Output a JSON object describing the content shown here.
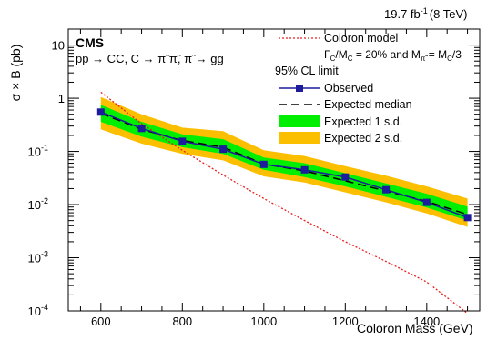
{
  "chart_data": {
    "type": "line",
    "lumi_label": "19.7 fb",
    "lumi_exponent": "-1",
    "energy_label": "(8 TeV)",
    "experiment": "CMS",
    "process": "pp → CC, C → π̃ π̃, π̃ → gg",
    "xlabel": "Coloron Mass (GeV)",
    "ylabel": "σ × B (pb)",
    "xlim": [
      520,
      1530
    ],
    "ylim": [
      0.0001,
      20
    ],
    "yscale": "log",
    "x_ticks": [
      600,
      800,
      1000,
      1200,
      1400
    ],
    "y_ticks": [
      {
        "value": 0.0001,
        "base": "10",
        "exp": "-4"
      },
      {
        "value": 0.001,
        "base": "10",
        "exp": "-3"
      },
      {
        "value": 0.01,
        "base": "10",
        "exp": "-2"
      },
      {
        "value": 0.1,
        "base": "10",
        "exp": "-1"
      },
      {
        "value": 1,
        "base": "1",
        "exp": ""
      },
      {
        "value": 10,
        "base": "10",
        "exp": ""
      }
    ],
    "legend": {
      "model": "Coloron model",
      "model_params": "Γ_C/M_C = 20% and M_π̃ = M_C/3",
      "cl_header": "95% CL limit",
      "observed": "Observed",
      "expected": "Expected median",
      "band1": "Expected 1 s.d.",
      "band2": "Expected 2 s.d."
    },
    "x": [
      600,
      700,
      800,
      900,
      1000,
      1100,
      1200,
      1300,
      1400,
      1500
    ],
    "series": [
      {
        "name": "Observed",
        "values": [
          0.55,
          0.27,
          0.155,
          0.11,
          0.057,
          0.045,
          0.033,
          0.019,
          0.011,
          0.0057
        ]
      },
      {
        "name": "Expected median",
        "values": [
          0.52,
          0.26,
          0.16,
          0.12,
          0.058,
          0.043,
          0.028,
          0.018,
          0.0115,
          0.0065
        ]
      }
    ],
    "band_1sd": {
      "low": [
        0.36,
        0.19,
        0.12,
        0.09,
        0.045,
        0.033,
        0.022,
        0.014,
        0.0088,
        0.005
      ],
      "high": [
        0.75,
        0.36,
        0.21,
        0.17,
        0.077,
        0.06,
        0.039,
        0.025,
        0.016,
        0.0092
      ]
    },
    "band_2sd": {
      "low": [
        0.26,
        0.14,
        0.09,
        0.068,
        0.034,
        0.026,
        0.017,
        0.011,
        0.0068,
        0.0038
      ],
      "high": [
        1.05,
        0.5,
        0.28,
        0.24,
        0.105,
        0.082,
        0.053,
        0.035,
        0.022,
        0.013
      ]
    },
    "model_curve": {
      "x": [
        600,
        700,
        800,
        900,
        1000,
        1100,
        1200,
        1300,
        1400,
        1500
      ],
      "values": [
        1.3,
        0.33,
        0.105,
        0.036,
        0.013,
        0.005,
        0.002,
        0.00085,
        0.00035,
        9e-05
      ]
    },
    "colors": {
      "observed": "#1c1c9c",
      "band1": "#00ee00",
      "band2": "#fcbf00",
      "model": "#e8201c",
      "expected": "#000000"
    },
    "grid": false
  }
}
